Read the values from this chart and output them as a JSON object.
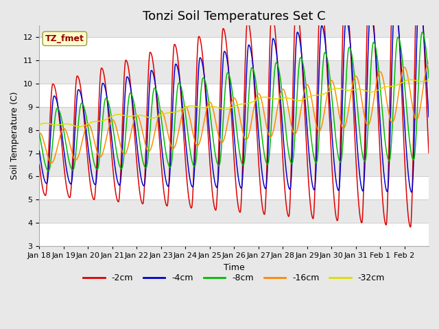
{
  "title": "Tonzi Soil Temperatures Set C",
  "xlabel": "Time",
  "ylabel": "Soil Temperature (C)",
  "ylim": [
    3.0,
    12.5
  ],
  "yticks": [
    3.0,
    4.0,
    5.0,
    6.0,
    7.0,
    8.0,
    9.0,
    10.0,
    11.0,
    12.0
  ],
  "line_colors": {
    "-2cm": "#dd0000",
    "-4cm": "#0000cc",
    "-8cm": "#00bb00",
    "-16cm": "#ff8800",
    "-32cm": "#dddd00"
  },
  "legend_label": "TZ_fmet",
  "bg_color": "#e8e8e8",
  "band_colors": [
    "#f0f0f0",
    "#e0e0e0"
  ],
  "grid_color": "#d8d8d8",
  "day_labels": [
    "Jan 18",
    "Jan 19",
    "Jan 20",
    "Jan 21",
    "Jan 22",
    "Jan 23",
    "Jan 24",
    "Jan 25",
    "Jan 26",
    "Jan 27",
    "Jan 28",
    "Jan 29",
    "Jan 30",
    "Jan 31",
    "Feb 1",
    "Feb 2"
  ],
  "title_fontsize": 13,
  "axis_label_fontsize": 9,
  "tick_fontsize": 8,
  "legend_fontsize": 9,
  "line_width": 1.1
}
